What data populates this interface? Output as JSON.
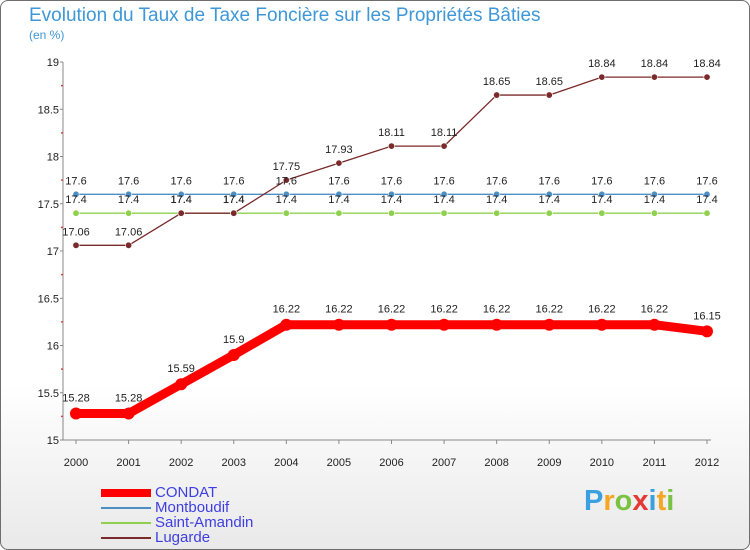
{
  "chart_data": {
    "type": "line",
    "title": "Evolution du Taux de Taxe Foncière sur les Propriétés Bâties",
    "ylabel": "(en %)",
    "xlabel": "",
    "ylim": [
      15,
      19
    ],
    "yticks": [
      "15",
      "15.5",
      "16",
      "16.5",
      "17",
      "17.5",
      "18",
      "18.5",
      "19"
    ],
    "x": [
      "2000",
      "2001",
      "2002",
      "2003",
      "2004",
      "2005",
      "2006",
      "2007",
      "2008",
      "2009",
      "2010",
      "2011",
      "2012"
    ],
    "series": [
      {
        "name": "CONDAT",
        "color": "#ff0000",
        "values": [
          15.28,
          15.28,
          15.59,
          15.9,
          16.22,
          16.22,
          16.22,
          16.22,
          16.22,
          16.22,
          16.22,
          16.22,
          16.15
        ],
        "labels": [
          "15.28",
          "15.28",
          "15.59",
          "15.9",
          "16.22",
          "16.22",
          "16.22",
          "16.22",
          "16.22",
          "16.22",
          "16.22",
          "16.22",
          "16.15"
        ]
      },
      {
        "name": "Montboudif",
        "color": "#4d8fc4",
        "values": [
          17.6,
          17.6,
          17.6,
          17.6,
          17.6,
          17.6,
          17.6,
          17.6,
          17.6,
          17.6,
          17.6,
          17.6,
          17.6
        ],
        "labels": [
          "17.6",
          "17.6",
          "17.6",
          "17.6",
          "17.6",
          "17.6",
          "17.6",
          "17.6",
          "17.6",
          "17.6",
          "17.6",
          "17.6",
          "17.6"
        ]
      },
      {
        "name": "Saint-Amandin",
        "color": "#8fd14f",
        "values": [
          17.4,
          17.4,
          17.4,
          17.4,
          17.4,
          17.4,
          17.4,
          17.4,
          17.4,
          17.4,
          17.4,
          17.4,
          17.4
        ],
        "labels": [
          "17.4",
          "17.4",
          "17.4",
          "17.4",
          "17.4",
          "17.4",
          "17.4",
          "17.4",
          "17.4",
          "17.4",
          "17.4",
          "17.4",
          "17.4"
        ]
      },
      {
        "name": "Lugarde",
        "color": "#7a2a2a",
        "values": [
          17.06,
          17.06,
          17.4,
          17.4,
          17.75,
          17.93,
          18.11,
          18.11,
          18.65,
          18.65,
          18.84,
          18.84,
          18.84
        ],
        "labels": [
          "17.06",
          "17.06",
          "17.4",
          "17.4",
          "17.75",
          "17.93",
          "18.11",
          "18.11",
          "18.65",
          "18.65",
          "18.84",
          "18.84",
          "18.84"
        ]
      }
    ],
    "legend_position": "bottom-left",
    "grid": false
  },
  "brand": {
    "letters": [
      "P",
      "r",
      "o",
      "x",
      "i",
      "t",
      "i"
    ],
    "colors": [
      "#3aa0e0",
      "#f5a623",
      "#7cc242",
      "#e53935",
      "#3aa0e0",
      "#f5a623",
      "#7cc242"
    ]
  }
}
